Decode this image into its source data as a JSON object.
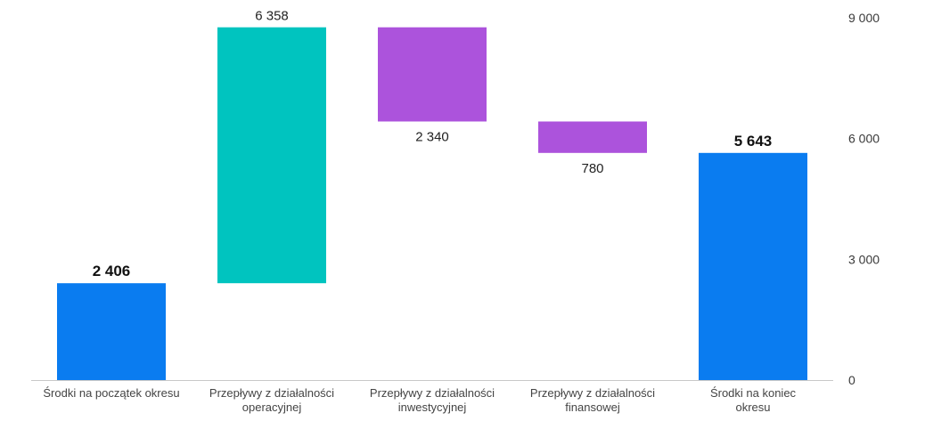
{
  "chart_data": {
    "type": "bar",
    "subtype": "waterfall",
    "title": "",
    "xlabel": "",
    "ylabel": "",
    "ylim": [
      0,
      9000
    ],
    "y_ticks": [
      {
        "value": 0,
        "label": "0"
      },
      {
        "value": 3000,
        "label": "3 000"
      },
      {
        "value": 6000,
        "label": "6 000"
      },
      {
        "value": 9000,
        "label": "9 000"
      }
    ],
    "y_axis_position": "right",
    "grid": false,
    "colors": {
      "total": "#0a7cf0",
      "increase": "#00c4bf",
      "decrease": "#ac53dc",
      "baseline": "#c8c8c8"
    },
    "steps": [
      {
        "category_lines": [
          "Środki na początek okresu"
        ],
        "kind": "total",
        "start": 0,
        "end": 2406,
        "label": "2 406",
        "label_position": "above"
      },
      {
        "category_lines": [
          "Przepływy z działalności",
          "operacyjnej"
        ],
        "kind": "increase",
        "start": 2406,
        "end": 8764,
        "label": "6 358",
        "label_position": "above"
      },
      {
        "category_lines": [
          "Przepływy z działalności",
          "inwestycyjnej"
        ],
        "kind": "decrease",
        "start": 8764,
        "end": 6424,
        "label": "2 340",
        "label_position": "below"
      },
      {
        "category_lines": [
          "Przepływy z działalności",
          "finansowej"
        ],
        "kind": "decrease",
        "start": 6424,
        "end": 5643,
        "label": "780",
        "label_position": "below"
      },
      {
        "category_lines": [
          "Środki na koniec",
          "okresu"
        ],
        "kind": "total",
        "start": 0,
        "end": 5643,
        "label": "5 643",
        "label_position": "above"
      }
    ]
  }
}
